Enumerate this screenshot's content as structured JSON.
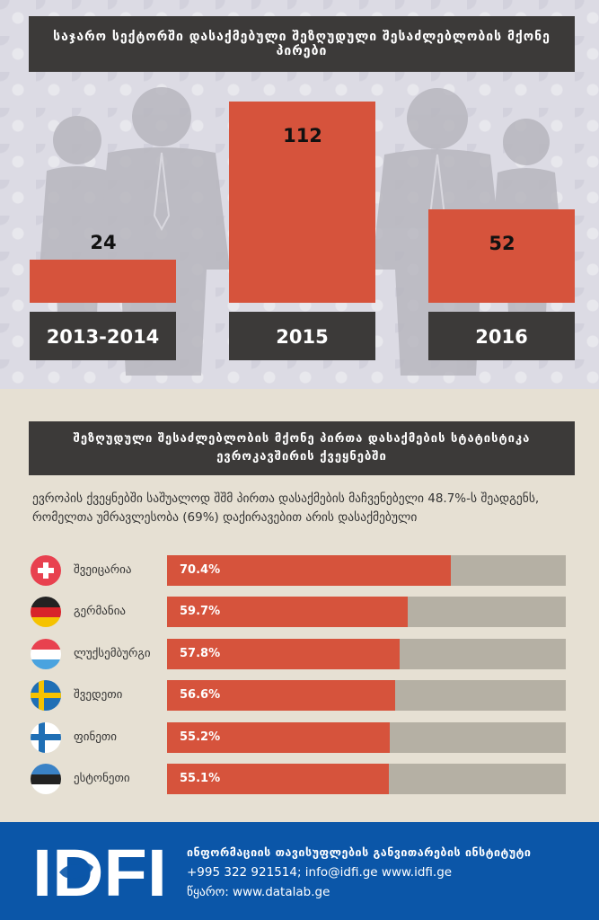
{
  "top_title": "საჯარო სექტორში დასაქმებული შეზღუდული შესაძლებლობის მქონე პირები",
  "chart_data": [
    {
      "type": "bar",
      "categories": [
        "2013-2014",
        "2015",
        "2016"
      ],
      "values": [
        24,
        112,
        52
      ],
      "title": "საჯარო სექტორში დასაქმებული შეზღუდული შესაძლებლობის მქონე პირები"
    },
    {
      "type": "bar",
      "orientation": "horizontal",
      "categories": [
        "შვეიცარია",
        "გერმანია",
        "ლუქსემბურგი",
        "შვედეთი",
        "ფინეთი",
        "ესტონეთი"
      ],
      "values": [
        70.4,
        59.7,
        57.8,
        56.6,
        55.2,
        55.1
      ],
      "value_labels": [
        "70.4%",
        "59.7%",
        "57.8%",
        "56.6%",
        "55.2%",
        "55.1%"
      ],
      "xlim": [
        0,
        100
      ],
      "title": "შეზღუდული შესაძლებლობის მქონე პირთა დასაქმების სტატისტიკა ევროკავშირის ქვეყნებში"
    }
  ],
  "stats_title_line1": "შეზღუდული შესაძლებლობის მქონე პირთა დასაქმების სტატისტიკა",
  "stats_title_line2": "ევროკავშირის ქვეყნებში",
  "stats_note": "ევროპის ქვეყნებში საშუალოდ შშმ პირთა დასაქმების მაჩვენებელი 48.7%-ს შეადგენს, რომელთა უმრავლესობა (69%) დაქირავებით არის დასაქმებული",
  "countries": [
    {
      "name": "შვეიცარია",
      "value": 70.4,
      "label": "70.4%",
      "flag": "flag-switzerland-icon"
    },
    {
      "name": "გერმანია",
      "value": 59.7,
      "label": "59.7%",
      "flag": "flag-germany-icon"
    },
    {
      "name": "ლუქსემბურგი",
      "value": 57.8,
      "label": "57.8%",
      "flag": "flag-luxembourg-icon"
    },
    {
      "name": "შვედეთი",
      "value": 56.6,
      "label": "56.6%",
      "flag": "flag-sweden-icon"
    },
    {
      "name": "ფინეთი",
      "value": 55.2,
      "label": "55.2%",
      "flag": "flag-finland-icon"
    },
    {
      "name": "ესტონეთი",
      "value": 55.1,
      "label": "55.1%",
      "flag": "flag-estonia-icon"
    }
  ],
  "footer": {
    "logo_text": "IDFI",
    "org_name": "ინფორმაციის თავისუფლების განვითარების ინსტიტუტი",
    "contact": "+995 322 921514; info@idfi.ge www.idfi.ge",
    "source": "წყარო: www.datalab.ge"
  },
  "colors": {
    "bar": "#d6533c",
    "label_box": "#3c3a39",
    "track": "#b5b0a4",
    "footer": "#0b56a8",
    "top_bg": "#dcdbe4"
  }
}
